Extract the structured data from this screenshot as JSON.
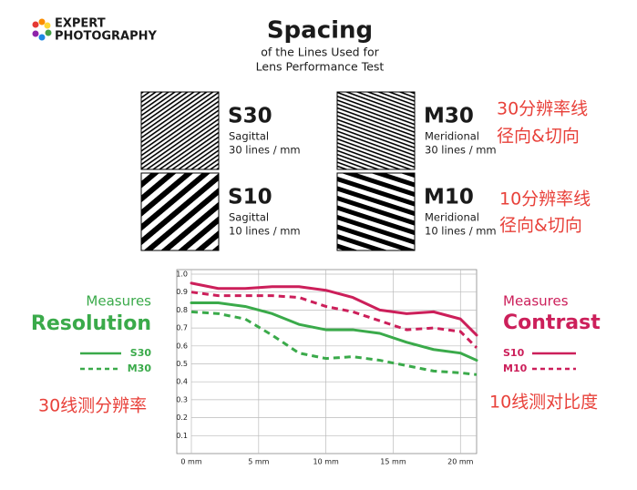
{
  "logo": {
    "line1": "EXPERT",
    "line2": "PHOTOGRAPHY"
  },
  "header": {
    "title": "Spacing",
    "subtitle1": "of the Lines Used for",
    "subtitle2": "Lens Performance Test"
  },
  "patterns": [
    {
      "code": "S30",
      "kind": "Sagittal",
      "density": "30 lines / mm"
    },
    {
      "code": "S10",
      "kind": "Sagittal",
      "density": "10 lines / mm"
    },
    {
      "code": "M30",
      "kind": "Meridional",
      "density": "30 lines / mm"
    },
    {
      "code": "M10",
      "kind": "Meridional",
      "density": "10 lines / mm"
    }
  ],
  "notes": {
    "m30_line1": "30分辨率线",
    "m30_line2": "径向&切向",
    "m10_line1": "10分辨率线",
    "m10_line2": "径向&切向",
    "left": "30线测分辨率",
    "right": "10线测对比度"
  },
  "legend_left": {
    "caption": "Measures",
    "heading": "Resolution"
  },
  "legend_right": {
    "caption": "Measures",
    "heading": "Contrast"
  },
  "chart_data": {
    "type": "line",
    "x": [
      0,
      2,
      4,
      6,
      8,
      10,
      12,
      14,
      16,
      18,
      20,
      21.2
    ],
    "series": [
      {
        "name": "S30",
        "color": "#3aaa4a",
        "dashed": false,
        "side": "left",
        "values": [
          0.84,
          0.84,
          0.82,
          0.78,
          0.72,
          0.69,
          0.69,
          0.67,
          0.62,
          0.58,
          0.56,
          0.52
        ]
      },
      {
        "name": "M30",
        "color": "#3aaa4a",
        "dashed": true,
        "side": "left",
        "values": [
          0.79,
          0.78,
          0.75,
          0.66,
          0.56,
          0.53,
          0.54,
          0.52,
          0.49,
          0.46,
          0.45,
          0.44
        ]
      },
      {
        "name": "S10",
        "color": "#cc1f5a",
        "dashed": false,
        "side": "right",
        "values": [
          0.95,
          0.92,
          0.92,
          0.93,
          0.93,
          0.91,
          0.87,
          0.8,
          0.78,
          0.79,
          0.75,
          0.66
        ]
      },
      {
        "name": "M10",
        "color": "#cc1f5a",
        "dashed": true,
        "side": "right",
        "values": [
          0.9,
          0.88,
          0.88,
          0.88,
          0.87,
          0.82,
          0.79,
          0.74,
          0.69,
          0.7,
          0.68,
          0.59
        ]
      }
    ],
    "xlim": [
      0,
      21.2
    ],
    "xticks": [
      {
        "value": 0,
        "label": "0 mm"
      },
      {
        "value": 5,
        "label": "5 mm"
      },
      {
        "value": 10,
        "label": "10 mm"
      },
      {
        "value": 15,
        "label": "15 mm"
      },
      {
        "value": 20,
        "label": "20 mm"
      }
    ],
    "ylim": [
      0,
      1
    ],
    "yticks": [
      0.1,
      0.2,
      0.3,
      0.4,
      0.5,
      0.6,
      0.7,
      0.8,
      0.9,
      {
        "value": 1,
        "label": "1.0"
      }
    ],
    "grid": true
  }
}
